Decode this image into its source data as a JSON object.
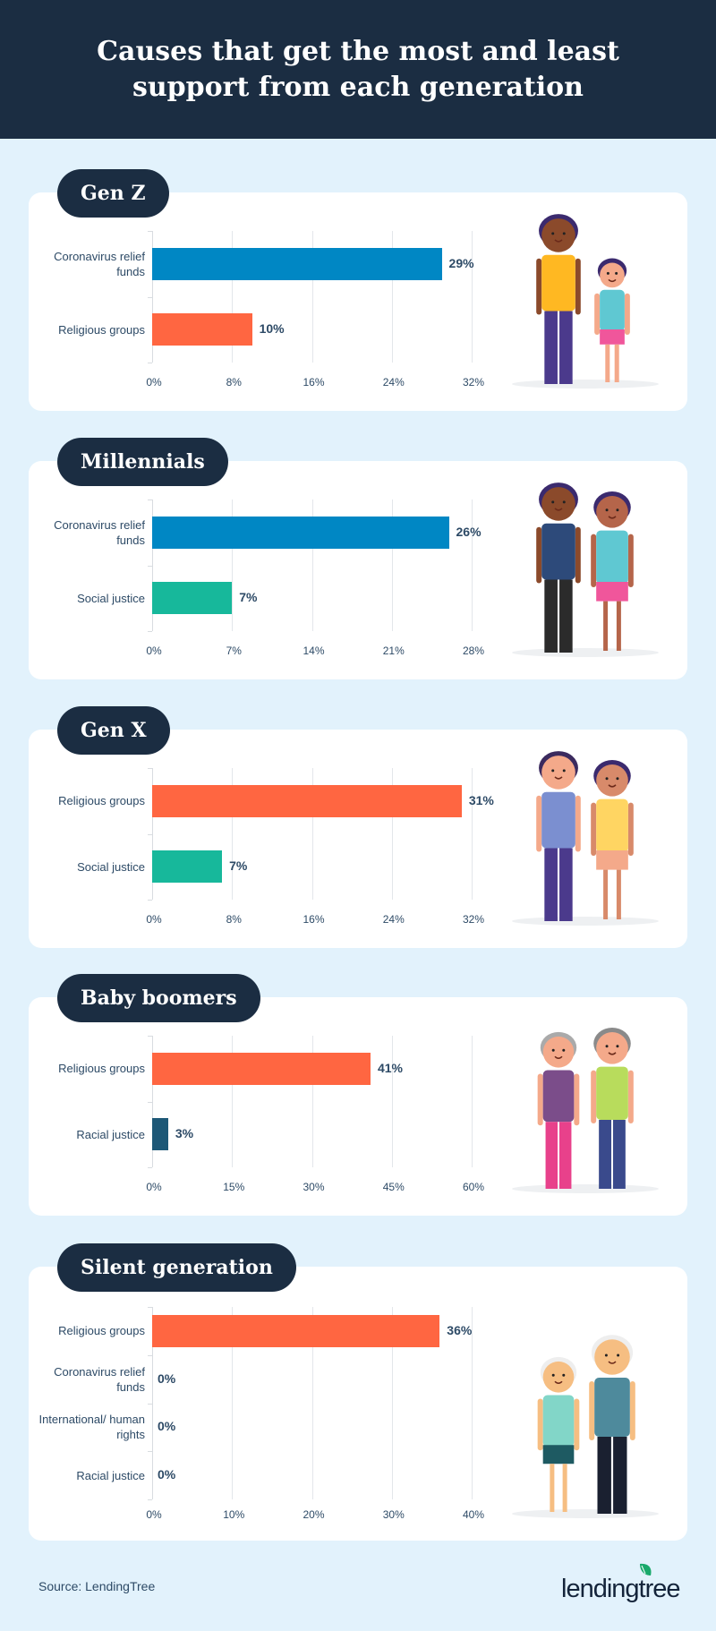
{
  "title": "Causes that get the most and least support from each generation",
  "colors": {
    "header": "#1b2d42",
    "background": "#e2f2fc",
    "blue": "#0087c4",
    "orange": "#ff6641",
    "teal": "#17b89b",
    "dark_teal": "#1d5877"
  },
  "chart_data": [
    {
      "type": "bar",
      "title": "Gen Z",
      "categories": [
        "Coronavirus relief funds",
        "Religious groups"
      ],
      "values": [
        29,
        10
      ],
      "value_labels": [
        "29%",
        "10%"
      ],
      "bar_colors": [
        "#0087c4",
        "#ff6641"
      ],
      "xlim": [
        0,
        32
      ],
      "ticks": [
        "0%",
        "8%",
        "16%",
        "24%",
        "32%"
      ],
      "tick_values": [
        0,
        8,
        16,
        24,
        32
      ]
    },
    {
      "type": "bar",
      "title": "Millennials",
      "categories": [
        "Coronavirus relief funds",
        "Social justice"
      ],
      "values": [
        26,
        7
      ],
      "value_labels": [
        "26%",
        "7%"
      ],
      "bar_colors": [
        "#0087c4",
        "#17b89b"
      ],
      "xlim": [
        0,
        28
      ],
      "ticks": [
        "0%",
        "7%",
        "14%",
        "21%",
        "28%"
      ],
      "tick_values": [
        0,
        7,
        14,
        21,
        28
      ]
    },
    {
      "type": "bar",
      "title": "Gen X",
      "categories": [
        "Religious groups",
        "Social justice"
      ],
      "values": [
        31,
        7
      ],
      "value_labels": [
        "31%",
        "7%"
      ],
      "bar_colors": [
        "#ff6641",
        "#17b89b"
      ],
      "xlim": [
        0,
        32
      ],
      "ticks": [
        "0%",
        "8%",
        "16%",
        "24%",
        "32%"
      ],
      "tick_values": [
        0,
        8,
        16,
        24,
        32
      ]
    },
    {
      "type": "bar",
      "title": "Baby boomers",
      "categories": [
        "Religious groups",
        "Racial justice"
      ],
      "values": [
        41,
        3
      ],
      "value_labels": [
        "41%",
        "3%"
      ],
      "bar_colors": [
        "#ff6641",
        "#1d5877"
      ],
      "xlim": [
        0,
        60
      ],
      "ticks": [
        "0%",
        "15%",
        "30%",
        "45%",
        "60%"
      ],
      "tick_values": [
        0,
        15,
        30,
        45,
        60
      ]
    },
    {
      "type": "bar",
      "title": "Silent generation",
      "categories": [
        "Religious groups",
        "Coronavirus relief funds",
        "International/ human rights",
        "Racial justice"
      ],
      "values": [
        36,
        0,
        0,
        0
      ],
      "value_labels": [
        "36%",
        "0%",
        "0%",
        "0%"
      ],
      "bar_colors": [
        "#ff6641",
        "#0087c4",
        "#0087c4",
        "#1d5877"
      ],
      "xlim": [
        0,
        40
      ],
      "ticks": [
        "0%",
        "10%",
        "20%",
        "30%",
        "40%"
      ],
      "tick_values": [
        0,
        10,
        20,
        30,
        40
      ]
    }
  ],
  "footer": {
    "source": "Source: LendingTree",
    "logo_text": "lendingtree"
  }
}
